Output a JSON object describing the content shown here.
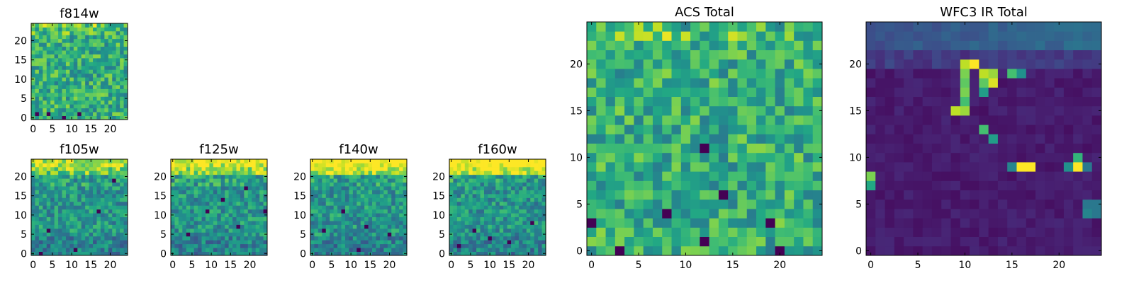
{
  "chart_data": [
    {
      "id": "f814w",
      "type": "heatmap",
      "title": "f814w",
      "colormap": "viridis",
      "grid_size": [
        25,
        25
      ],
      "xlim": [
        -0.5,
        24.5
      ],
      "ylim": [
        -0.5,
        24.5
      ],
      "xticks": [
        0,
        5,
        10,
        15,
        20
      ],
      "yticks": [
        0,
        5,
        10,
        15,
        20
      ],
      "xlabel": "",
      "ylabel": "",
      "legend": "none",
      "top_band": 0.55,
      "center_spot": [],
      "bright_spots": [],
      "dark_spots": [
        [
          8,
          0
        ],
        [
          4,
          1
        ],
        [
          12,
          1
        ],
        [
          1,
          1
        ]
      ]
    },
    {
      "id": "f105w",
      "type": "heatmap",
      "title": "f105w",
      "colormap": "viridis",
      "grid_size": [
        25,
        25
      ],
      "xlim": [
        -0.5,
        24.5
      ],
      "ylim": [
        -0.5,
        24.5
      ],
      "xticks": [
        0,
        5,
        10,
        15,
        20
      ],
      "yticks": [
        0,
        5,
        10,
        15,
        20
      ],
      "xlabel": "",
      "ylabel": "",
      "legend": "none",
      "top_band": 0.4,
      "center_spot": [],
      "bright_spots": [],
      "dark_spots": [
        [
          11,
          1
        ],
        [
          17,
          11
        ],
        [
          21,
          19
        ],
        [
          2,
          0
        ],
        [
          4,
          6
        ]
      ]
    },
    {
      "id": "f125w",
      "type": "heatmap",
      "title": "f125w",
      "colormap": "viridis",
      "grid_size": [
        25,
        25
      ],
      "xlim": [
        -0.5,
        24.5
      ],
      "ylim": [
        -0.5,
        24.5
      ],
      "xticks": [
        0,
        5,
        10,
        15,
        20
      ],
      "yticks": [
        0,
        5,
        10,
        15,
        20
      ],
      "xlabel": "",
      "ylabel": "",
      "legend": "none",
      "top_band": 0.5,
      "center_spot": [],
      "bright_spots": [],
      "dark_spots": [
        [
          13,
          14
        ],
        [
          9,
          11
        ],
        [
          24,
          11
        ],
        [
          19,
          17
        ],
        [
          17,
          7
        ],
        [
          4,
          5
        ]
      ]
    },
    {
      "id": "f140w",
      "type": "heatmap",
      "title": "f140w",
      "colormap": "viridis",
      "grid_size": [
        25,
        25
      ],
      "xlim": [
        -0.5,
        24.5
      ],
      "ylim": [
        -0.5,
        24.5
      ],
      "xticks": [
        0,
        5,
        10,
        15,
        20
      ],
      "yticks": [
        0,
        5,
        10,
        15,
        20
      ],
      "xlabel": "",
      "ylabel": "",
      "legend": "none",
      "top_band": 0.6,
      "center_spot": [],
      "bright_spots": [],
      "dark_spots": [
        [
          8,
          11
        ],
        [
          12,
          1
        ],
        [
          20,
          5
        ],
        [
          14,
          7
        ],
        [
          3,
          6
        ]
      ]
    },
    {
      "id": "f160w",
      "type": "heatmap",
      "title": "f160w",
      "colormap": "viridis",
      "grid_size": [
        25,
        25
      ],
      "xlim": [
        -0.5,
        24.5
      ],
      "ylim": [
        -0.5,
        24.5
      ],
      "xticks": [
        0,
        5,
        10,
        15,
        20
      ],
      "yticks": [
        0,
        5,
        10,
        15,
        20
      ],
      "xlabel": "",
      "ylabel": "",
      "legend": "none",
      "top_band": 0.6,
      "center_spot": [],
      "bright_spots": [],
      "dark_spots": [
        [
          6,
          6
        ],
        [
          10,
          4
        ],
        [
          21,
          8
        ],
        [
          15,
          3
        ],
        [
          2,
          2
        ]
      ]
    },
    {
      "id": "acs_total",
      "type": "heatmap",
      "title": "ACS Total",
      "colormap": "viridis",
      "grid_size": [
        25,
        25
      ],
      "xlim": [
        -0.5,
        24.5
      ],
      "ylim": [
        -0.5,
        24.5
      ],
      "xticks": [
        0,
        5,
        10,
        15,
        20
      ],
      "yticks": [
        0,
        5,
        10,
        15,
        20
      ],
      "xlabel": "",
      "ylabel": "",
      "legend": "none",
      "top_band": 0.45,
      "center_spot": [],
      "bright_spots": [],
      "dark_spots": [
        [
          12,
          11
        ],
        [
          8,
          4
        ],
        [
          12,
          1
        ],
        [
          3,
          0
        ],
        [
          0,
          3
        ],
        [
          20,
          0
        ],
        [
          14,
          6
        ],
        [
          19,
          3
        ]
      ]
    },
    {
      "id": "wfc3_ir_total",
      "type": "heatmap",
      "title": "WFC3 IR Total",
      "colormap": "viridis",
      "grid_size": [
        25,
        25
      ],
      "xlim": [
        -0.5,
        24.5
      ],
      "ylim": [
        -0.5,
        24.5
      ],
      "xticks": [
        0,
        5,
        10,
        15,
        20
      ],
      "yticks": [
        0,
        5,
        10,
        15,
        20
      ],
      "xlabel": "",
      "ylabel": "",
      "legend": "none",
      "top_band": 0.0,
      "center_spot": [],
      "bright_spots": [
        [
          10,
          20,
          0.9
        ],
        [
          11,
          20,
          1.0
        ],
        [
          12,
          19,
          0.9
        ],
        [
          13,
          19,
          0.85
        ],
        [
          13,
          18,
          0.95
        ],
        [
          12,
          18,
          0.75
        ],
        [
          10,
          19,
          0.8
        ],
        [
          10,
          18,
          0.75
        ],
        [
          10,
          17,
          0.8
        ],
        [
          10,
          16,
          0.7
        ],
        [
          9,
          15,
          0.9
        ],
        [
          10,
          15,
          0.85
        ],
        [
          12,
          17,
          0.55
        ],
        [
          15,
          19,
          0.7
        ],
        [
          16,
          19,
          0.5
        ],
        [
          12,
          13,
          0.7
        ],
        [
          13,
          12,
          0.55
        ],
        [
          16,
          9,
          1.0
        ],
        [
          17,
          9,
          1.0
        ],
        [
          15,
          9,
          0.45
        ],
        [
          22,
          9,
          1.0
        ],
        [
          22,
          10,
          0.65
        ],
        [
          21,
          9,
          0.5
        ],
        [
          23,
          9,
          0.4
        ],
        [
          0,
          8,
          0.8
        ],
        [
          0,
          7,
          0.6
        ],
        [
          23,
          5,
          0.4
        ],
        [
          24,
          5,
          0.4
        ],
        [
          23,
          4,
          0.45
        ],
        [
          24,
          4,
          0.4
        ]
      ],
      "dark_spots": []
    }
  ]
}
